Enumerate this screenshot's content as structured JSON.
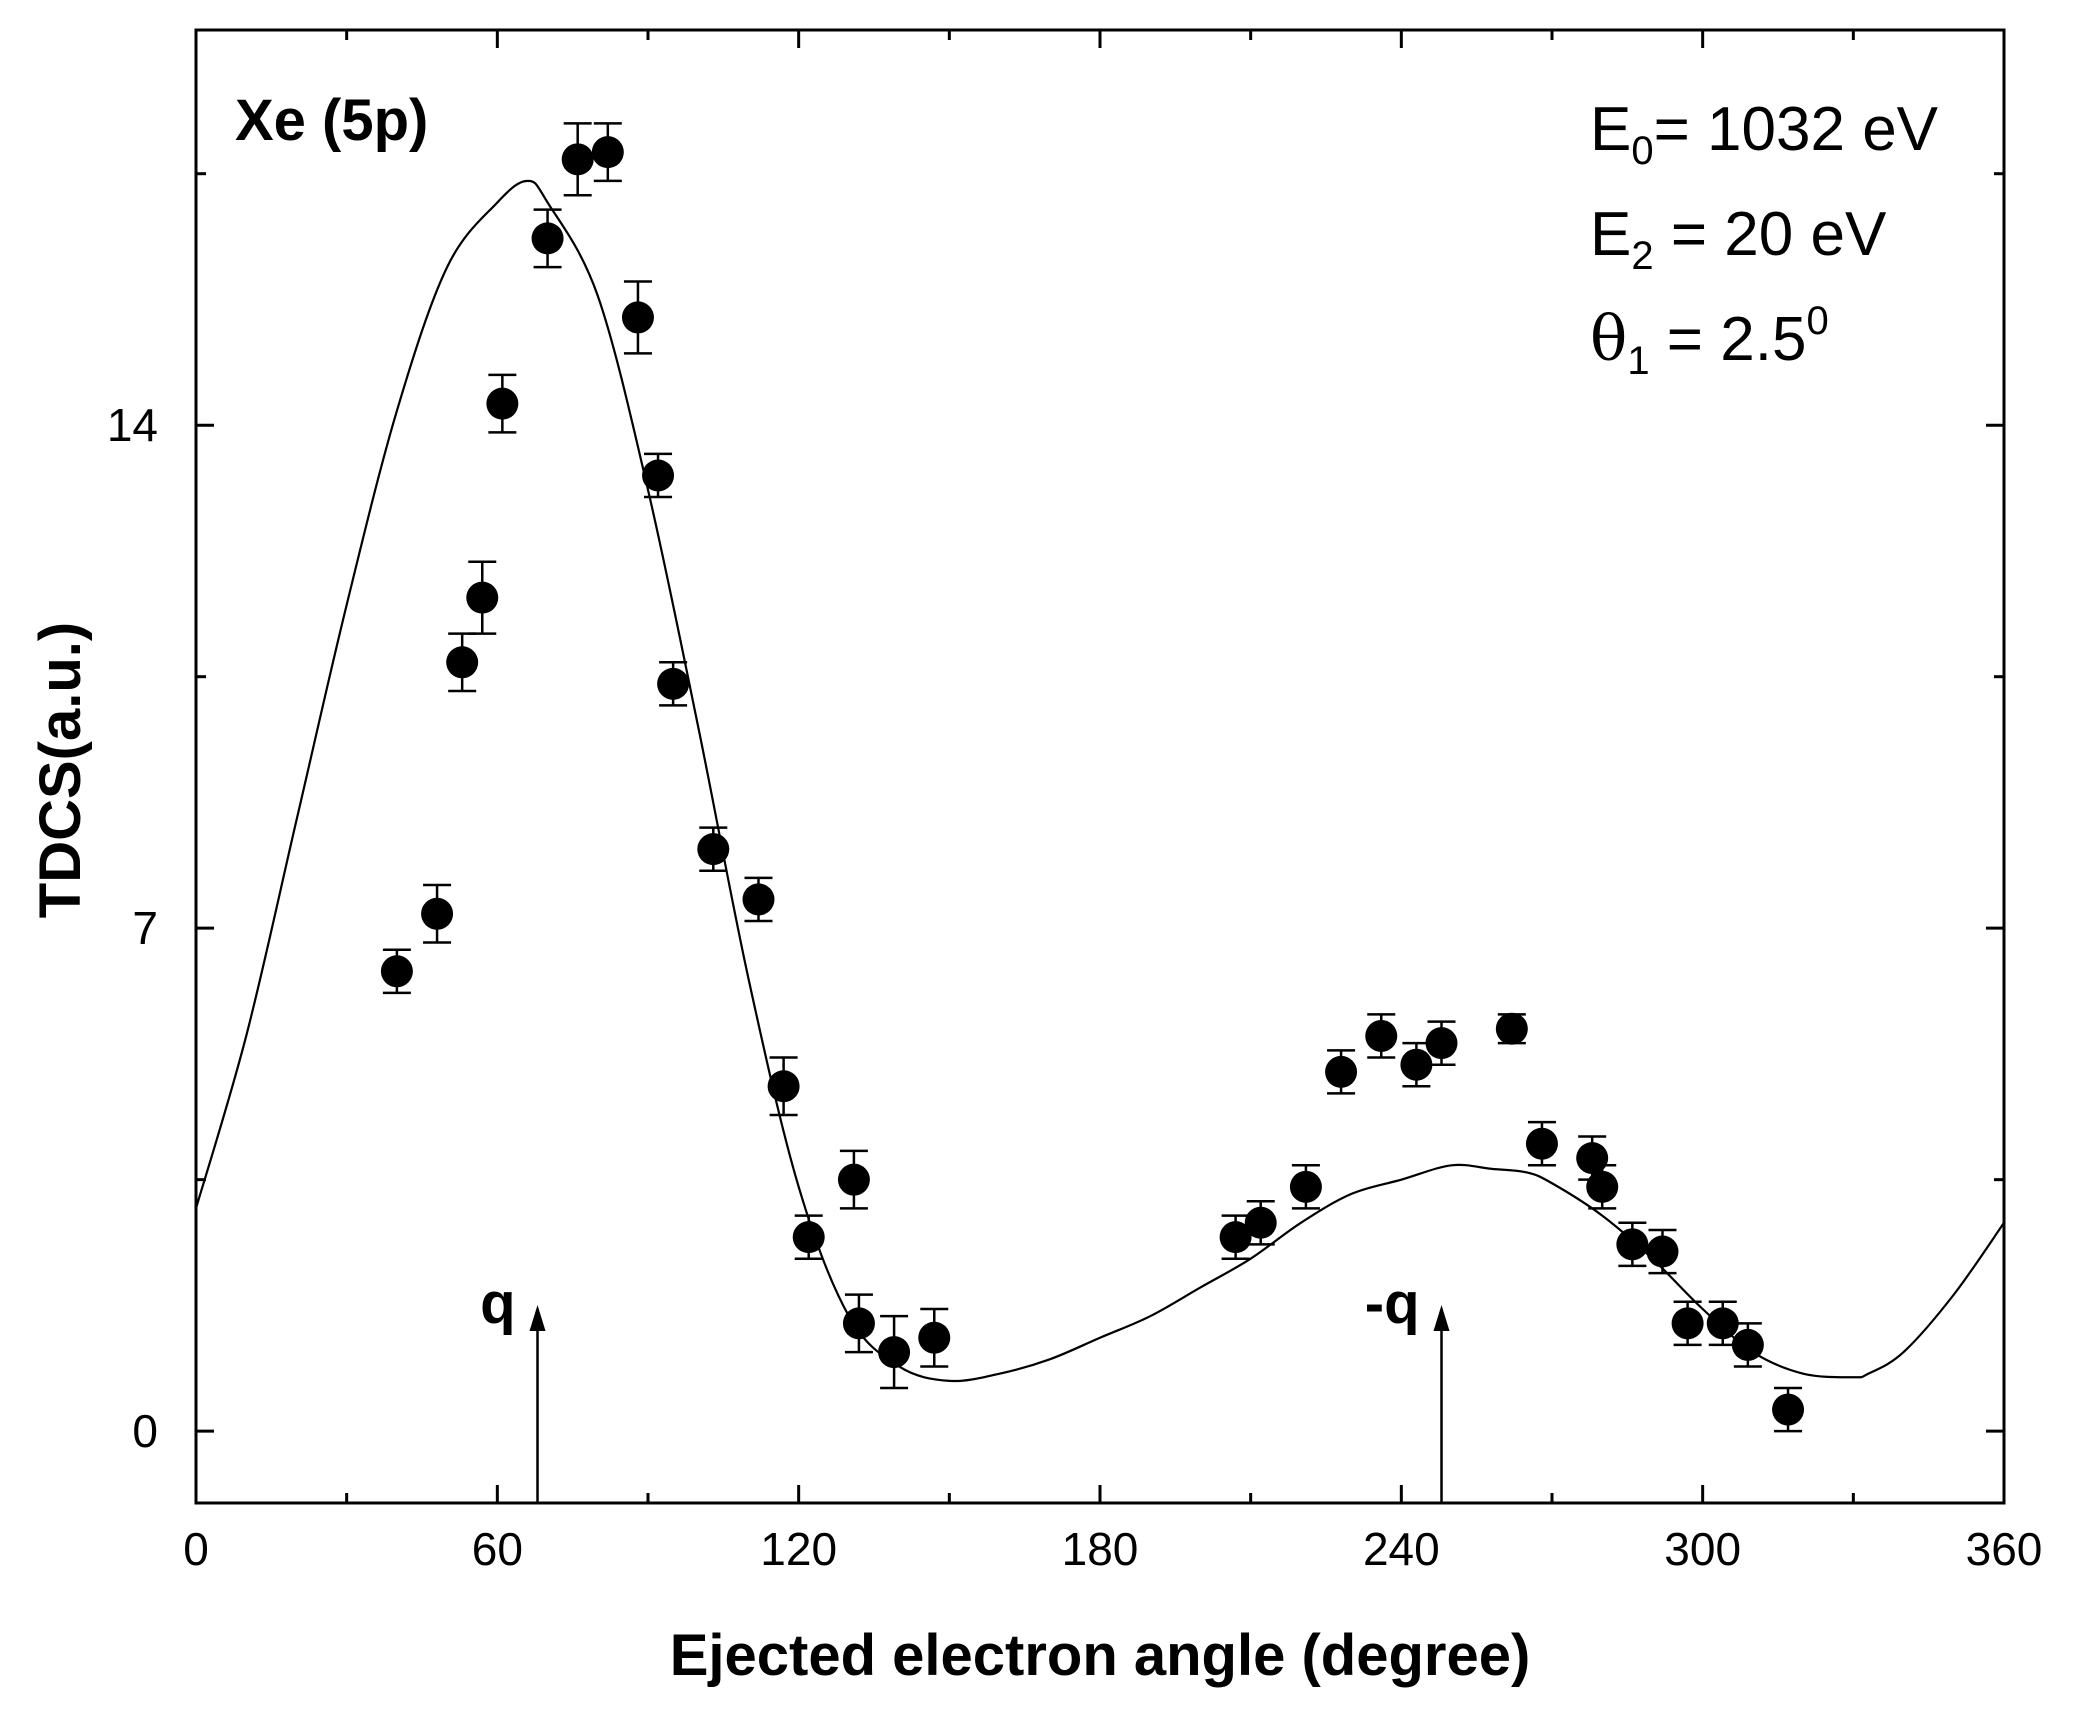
{
  "chart_data": {
    "type": "scatter",
    "title": "",
    "xlabel": "Ejected electron angle (degree)",
    "ylabel": "TDCS(a.u.)",
    "xlim": [
      0,
      360
    ],
    "ylim": [
      -1,
      19.5
    ],
    "xticks": [
      "0",
      "60",
      "120",
      "180",
      "240",
      "300",
      "360"
    ],
    "yticks": [
      "0",
      "7",
      "14"
    ],
    "grid": false,
    "annotations": {
      "target": "Xe (5p)",
      "params": [
        {
          "base": "E",
          "sub": "0",
          "rest": "= 1032 eV"
        },
        {
          "base": "E",
          "sub": "2",
          "rest": " = 20 eV"
        },
        {
          "base": "θ",
          "sub": "1",
          "rest": " = 2.5",
          "sup": "0"
        }
      ],
      "arrows": [
        {
          "label": "q",
          "x": 68
        },
        {
          "label": "-q",
          "x": 248
        }
      ]
    },
    "series": [
      {
        "kind": "points-with-errorbars",
        "x": [
          40,
          48,
          53,
          57,
          61,
          70,
          76,
          82,
          88,
          92,
          95,
          103,
          112,
          117,
          122,
          131,
          132,
          139,
          147,
          207,
          212,
          221,
          228,
          236,
          243,
          248,
          262,
          268,
          278,
          280,
          286,
          292,
          297,
          304,
          309,
          317
        ],
        "y": [
          6.4,
          7.2,
          10.7,
          11.6,
          14.3,
          16.6,
          17.7,
          17.8,
          15.5,
          13.3,
          10.4,
          8.1,
          7.4,
          4.8,
          2.7,
          3.5,
          1.5,
          1.1,
          1.3,
          2.7,
          2.9,
          3.4,
          5.0,
          5.5,
          5.1,
          5.4,
          5.6,
          4.0,
          3.8,
          3.4,
          2.6,
          2.5,
          1.5,
          1.5,
          1.2,
          0.3
        ],
        "err": [
          0.3,
          0.4,
          0.4,
          0.5,
          0.4,
          0.4,
          0.5,
          0.4,
          0.5,
          0.3,
          0.3,
          0.3,
          0.3,
          0.4,
          0.3,
          0.4,
          0.4,
          0.5,
          0.4,
          0.3,
          0.3,
          0.3,
          0.3,
          0.3,
          0.3,
          0.3,
          0.2,
          0.3,
          0.3,
          0.3,
          0.3,
          0.3,
          0.3,
          0.3,
          0.3,
          0.3
        ]
      },
      {
        "kind": "curve",
        "x": [
          0,
          10,
          20,
          30,
          40,
          50,
          60,
          66,
          70,
          80,
          90,
          100,
          110,
          120,
          130,
          140,
          150,
          160,
          170,
          180,
          190,
          200,
          210,
          220,
          230,
          240,
          250,
          258,
          265,
          270,
          280,
          290,
          300,
          310,
          320,
          330,
          333,
          340,
          350,
          360
        ],
        "y": [
          3.1,
          5.5,
          8.5,
          11.5,
          14.2,
          16.2,
          17.1,
          17.4,
          17.1,
          15.8,
          13.1,
          9.8,
          6.3,
          3.4,
          1.6,
          0.9,
          0.7,
          0.8,
          1.0,
          1.3,
          1.6,
          2.0,
          2.4,
          2.9,
          3.3,
          3.5,
          3.7,
          3.65,
          3.6,
          3.45,
          3.0,
          2.4,
          1.7,
          1.1,
          0.8,
          0.75,
          0.8,
          1.1,
          1.9,
          2.9
        ]
      }
    ]
  }
}
